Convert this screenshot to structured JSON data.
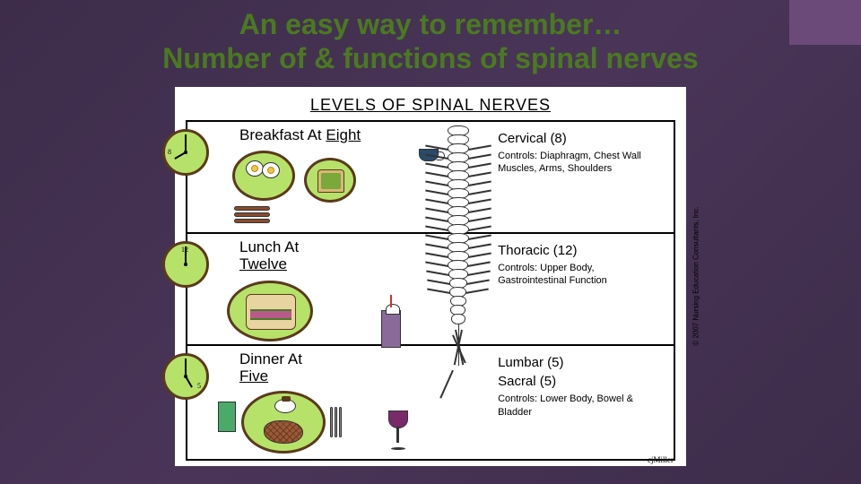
{
  "slide": {
    "title_line1": "An easy way to remember…",
    "title_line2": "Number of & functions of spinal nerves",
    "title_color": "#4a7a1f",
    "background_gradient": [
      "#3d2c4a",
      "#4a3558",
      "#3d2c4a"
    ],
    "corner_accent_color": "#6b4a7a"
  },
  "figure": {
    "type": "infographic",
    "title": "LEVELS OF SPINAL NERVES",
    "background_color": "#ffffff",
    "border_color": "#000000",
    "plate_fill": "#b6e26a",
    "plate_border": "#5a3a1a",
    "font_family": "Comic Sans MS",
    "rows": [
      {
        "clock_hour": 8,
        "clock_label": "8",
        "meal_line1": "Breakfast At ",
        "meal_underlined": "Eight",
        "level_name": "Cervical (8)",
        "controls_label": "Controls: Diaphragm, Chest Wall Muscles, Arms, Shoulders",
        "foods": [
          "fried-eggs",
          "bacon",
          "toast",
          "coffee-mug"
        ]
      },
      {
        "clock_hour": 12,
        "clock_label": "12",
        "meal_line1": "Lunch At ",
        "meal_underlined": "Twelve",
        "level_name": "Thoracic (12)",
        "controls_label": "Controls: Upper Body, Gastrointestinal Function",
        "foods": [
          "sandwich",
          "milkshake"
        ]
      },
      {
        "clock_hour": 5,
        "clock_label": "5",
        "meal_line1": "Dinner At ",
        "meal_underlined": "Five",
        "level_name": "Lumbar (5)",
        "level_name2": "Sacral (5)",
        "controls_label": "Controls: Lower Body, Bowel & Bladder",
        "foods": [
          "steak",
          "baked-potato",
          "wine",
          "napkin-utensils"
        ]
      }
    ],
    "spine_vertebrae_count": 22,
    "credit": "© 2007 Nursing Education Consultants, Inc.",
    "artist": "cjMiller"
  }
}
